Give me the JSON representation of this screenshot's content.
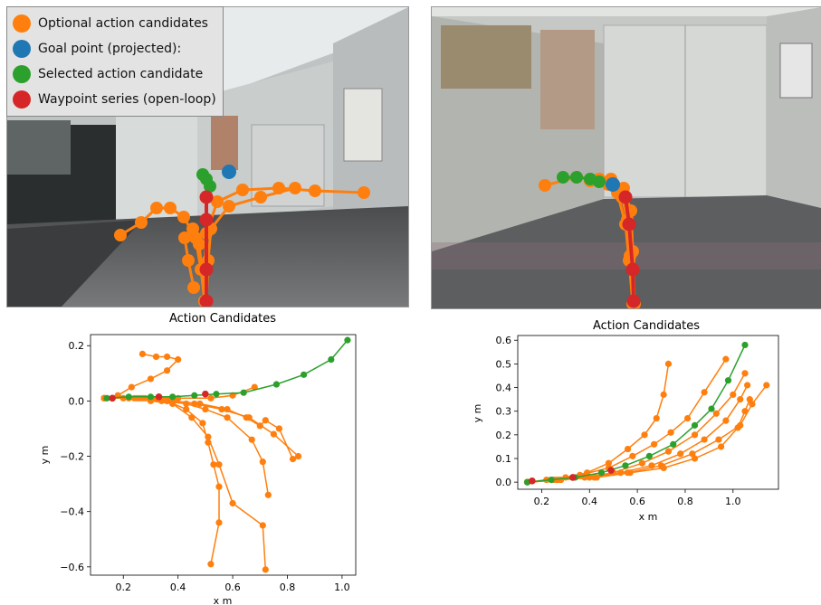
{
  "legend": {
    "items": [
      {
        "label": "Optional action candidates",
        "color": "#ff7f0e"
      },
      {
        "label": "Goal point (projected):",
        "color": "#1f77b4"
      },
      {
        "label": "Selected action candidate",
        "color": "#2ca02c"
      },
      {
        "label": "Waypoint series (open-loop)",
        "color": "#d62728"
      }
    ]
  },
  "colors": {
    "optional": "#ff7f0e",
    "goal": "#1f77b4",
    "selected": "#2ca02c",
    "waypoint": "#d62728"
  },
  "chart_data": [
    {
      "type": "line",
      "title": "Action Candidates",
      "xlabel": "x m",
      "ylabel": "y m",
      "xlim": [
        0.08,
        1.05
      ],
      "ylim": [
        -0.63,
        0.24
      ],
      "xticks": [
        "0.2",
        "0.4",
        "0.6",
        "0.8",
        "1.0"
      ],
      "yticks": [
        "0.2",
        "0.0",
        "−0.2",
        "−0.4",
        "−0.6"
      ],
      "xtick_values": [
        0.2,
        0.4,
        0.6,
        0.8,
        1.0
      ],
      "ytick_values": [
        0.2,
        0.0,
        -0.2,
        -0.4,
        -0.6
      ],
      "optional_candidates": [
        [
          [
            0.13,
            0.01
          ],
          [
            0.18,
            0.02
          ],
          [
            0.23,
            0.05
          ],
          [
            0.3,
            0.08
          ],
          [
            0.36,
            0.11
          ],
          [
            0.4,
            0.15
          ],
          [
            0.36,
            0.16
          ],
          [
            0.32,
            0.16
          ],
          [
            0.27,
            0.17
          ]
        ],
        [
          [
            0.13,
            0.01
          ],
          [
            0.2,
            0.01
          ],
          [
            0.28,
            0.01
          ],
          [
            0.36,
            0.0
          ],
          [
            0.43,
            -0.03
          ],
          [
            0.49,
            -0.08
          ],
          [
            0.51,
            -0.15
          ],
          [
            0.53,
            -0.23
          ],
          [
            0.55,
            -0.31
          ],
          [
            0.55,
            -0.44
          ],
          [
            0.52,
            -0.59
          ]
        ],
        [
          [
            0.13,
            0.01
          ],
          [
            0.22,
            0.01
          ],
          [
            0.3,
            0.0
          ],
          [
            0.38,
            -0.01
          ],
          [
            0.45,
            -0.06
          ],
          [
            0.51,
            -0.13
          ],
          [
            0.55,
            -0.23
          ],
          [
            0.6,
            -0.37
          ],
          [
            0.71,
            -0.45
          ],
          [
            0.72,
            -0.61
          ]
        ],
        [
          [
            0.13,
            0.01
          ],
          [
            0.24,
            0.01
          ],
          [
            0.34,
            0.0
          ],
          [
            0.43,
            -0.01
          ],
          [
            0.5,
            -0.03
          ],
          [
            0.58,
            -0.06
          ],
          [
            0.67,
            -0.14
          ],
          [
            0.71,
            -0.22
          ],
          [
            0.73,
            -0.34
          ]
        ],
        [
          [
            0.13,
            0.01
          ],
          [
            0.25,
            0.01
          ],
          [
            0.36,
            0.0
          ],
          [
            0.46,
            -0.01
          ],
          [
            0.56,
            -0.03
          ],
          [
            0.66,
            -0.06
          ],
          [
            0.75,
            -0.12
          ],
          [
            0.84,
            -0.2
          ]
        ],
        [
          [
            0.13,
            0.01
          ],
          [
            0.27,
            0.01
          ],
          [
            0.4,
            0.01
          ],
          [
            0.52,
            0.01
          ],
          [
            0.6,
            0.02
          ],
          [
            0.68,
            0.05
          ]
        ],
        [
          [
            0.13,
            0.01
          ],
          [
            0.26,
            0.01
          ],
          [
            0.38,
            0.0
          ],
          [
            0.48,
            -0.01
          ],
          [
            0.58,
            -0.03
          ],
          [
            0.65,
            -0.06
          ],
          [
            0.7,
            -0.09
          ],
          [
            0.72,
            -0.07
          ],
          [
            0.77,
            -0.1
          ],
          [
            0.82,
            -0.21
          ]
        ]
      ],
      "selected": [
        [
          0.14,
          0.01
        ],
        [
          0.22,
          0.015
        ],
        [
          0.3,
          0.015
        ],
        [
          0.38,
          0.015
        ],
        [
          0.46,
          0.02
        ],
        [
          0.54,
          0.025
        ],
        [
          0.64,
          0.03
        ],
        [
          0.76,
          0.06
        ],
        [
          0.86,
          0.095
        ],
        [
          0.96,
          0.15
        ],
        [
          1.02,
          0.22
        ]
      ],
      "waypoints": [
        [
          0.16,
          0.01
        ],
        [
          0.33,
          0.015
        ],
        [
          0.5,
          0.025
        ]
      ]
    },
    {
      "type": "line",
      "title": "Action Candidates",
      "xlabel": "x m",
      "ylabel": "y m",
      "xlim": [
        0.1,
        1.19
      ],
      "ylim": [
        -0.03,
        0.62
      ],
      "xticks": [
        "0.2",
        "0.4",
        "0.6",
        "0.8",
        "1.0"
      ],
      "yticks": [
        "0.6",
        "0.5",
        "0.4",
        "0.3",
        "0.2",
        "0.1",
        "0.0"
      ],
      "xtick_values": [
        0.2,
        0.4,
        0.6,
        0.8,
        1.0
      ],
      "ytick_values": [
        0.6,
        0.5,
        0.4,
        0.3,
        0.2,
        0.1,
        0.0
      ],
      "optional_candidates": [
        [
          [
            0.14,
            0.0
          ],
          [
            0.22,
            0.01
          ],
          [
            0.3,
            0.02
          ],
          [
            0.39,
            0.04
          ],
          [
            0.48,
            0.08
          ],
          [
            0.56,
            0.14
          ],
          [
            0.63,
            0.2
          ],
          [
            0.68,
            0.27
          ],
          [
            0.71,
            0.37
          ],
          [
            0.73,
            0.5
          ]
        ],
        [
          [
            0.14,
            0.0
          ],
          [
            0.25,
            0.01
          ],
          [
            0.36,
            0.03
          ],
          [
            0.48,
            0.06
          ],
          [
            0.58,
            0.11
          ],
          [
            0.67,
            0.16
          ],
          [
            0.74,
            0.21
          ],
          [
            0.81,
            0.27
          ],
          [
            0.88,
            0.38
          ],
          [
            0.97,
            0.52
          ]
        ],
        [
          [
            0.14,
            0.0
          ],
          [
            0.26,
            0.01
          ],
          [
            0.38,
            0.02
          ],
          [
            0.5,
            0.04
          ],
          [
            0.62,
            0.08
          ],
          [
            0.73,
            0.13
          ],
          [
            0.84,
            0.2
          ],
          [
            0.93,
            0.29
          ],
          [
            1.0,
            0.37
          ],
          [
            1.05,
            0.46
          ]
        ],
        [
          [
            0.14,
            0.0
          ],
          [
            0.27,
            0.01
          ],
          [
            0.4,
            0.02
          ],
          [
            0.53,
            0.04
          ],
          [
            0.66,
            0.07
          ],
          [
            0.78,
            0.12
          ],
          [
            0.88,
            0.18
          ],
          [
            0.97,
            0.26
          ],
          [
            1.03,
            0.35
          ],
          [
            1.06,
            0.41
          ]
        ],
        [
          [
            0.14,
            0.0
          ],
          [
            0.28,
            0.01
          ],
          [
            0.42,
            0.02
          ],
          [
            0.56,
            0.04
          ],
          [
            0.7,
            0.07
          ],
          [
            0.83,
            0.12
          ],
          [
            0.94,
            0.18
          ],
          [
            1.03,
            0.24
          ],
          [
            1.08,
            0.33
          ],
          [
            1.14,
            0.41
          ]
        ],
        [
          [
            0.14,
            0.0
          ],
          [
            0.28,
            0.01
          ],
          [
            0.43,
            0.02
          ],
          [
            0.57,
            0.04
          ],
          [
            0.71,
            0.06
          ],
          [
            0.84,
            0.1
          ],
          [
            0.95,
            0.15
          ],
          [
            1.02,
            0.23
          ],
          [
            1.05,
            0.3
          ],
          [
            1.07,
            0.35
          ]
        ]
      ],
      "selected": [
        [
          0.14,
          0.0
        ],
        [
          0.24,
          0.01
        ],
        [
          0.34,
          0.02
        ],
        [
          0.45,
          0.04
        ],
        [
          0.55,
          0.07
        ],
        [
          0.65,
          0.11
        ],
        [
          0.75,
          0.16
        ],
        [
          0.84,
          0.24
        ],
        [
          0.91,
          0.31
        ],
        [
          0.98,
          0.43
        ],
        [
          1.05,
          0.58
        ]
      ],
      "waypoints": [
        [
          0.16,
          0.005
        ],
        [
          0.33,
          0.02
        ],
        [
          0.49,
          0.05
        ]
      ]
    }
  ]
}
